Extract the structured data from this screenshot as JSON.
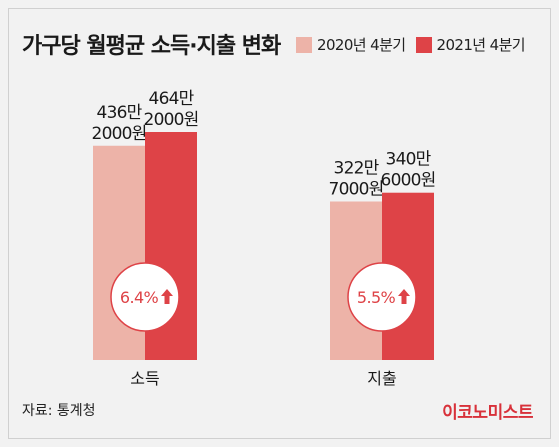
{
  "title": "가구당 월평균 소득·지출 변화",
  "colors": {
    "series_2020": "#edb3a8",
    "series_2021": "#de4347",
    "badge_border": "#de4347",
    "badge_text": "#de4347"
  },
  "source": "자료: 통계청",
  "brand": "이코노미스트",
  "chart_data": {
    "type": "bar",
    "title": "가구당 월평균 소득·지출 변화",
    "categories": [
      "소득",
      "지출"
    ],
    "series": [
      {
        "name": "2020년 4분기",
        "values": [
          4362000,
          3227000
        ],
        "labels": [
          "436만\n2000원",
          "322만\n7000원"
        ]
      },
      {
        "name": "2021년 4분기",
        "values": [
          4642000,
          3406000
        ],
        "labels": [
          "464만\n2000원",
          "340만\n6000원"
        ]
      }
    ],
    "growth": [
      {
        "category": "소득",
        "text": "6.4%",
        "icon": "up-arrow-icon"
      },
      {
        "category": "지출",
        "text": "5.5%",
        "icon": "up-arrow-icon"
      }
    ],
    "legend_position": "top-right",
    "grid": false
  }
}
